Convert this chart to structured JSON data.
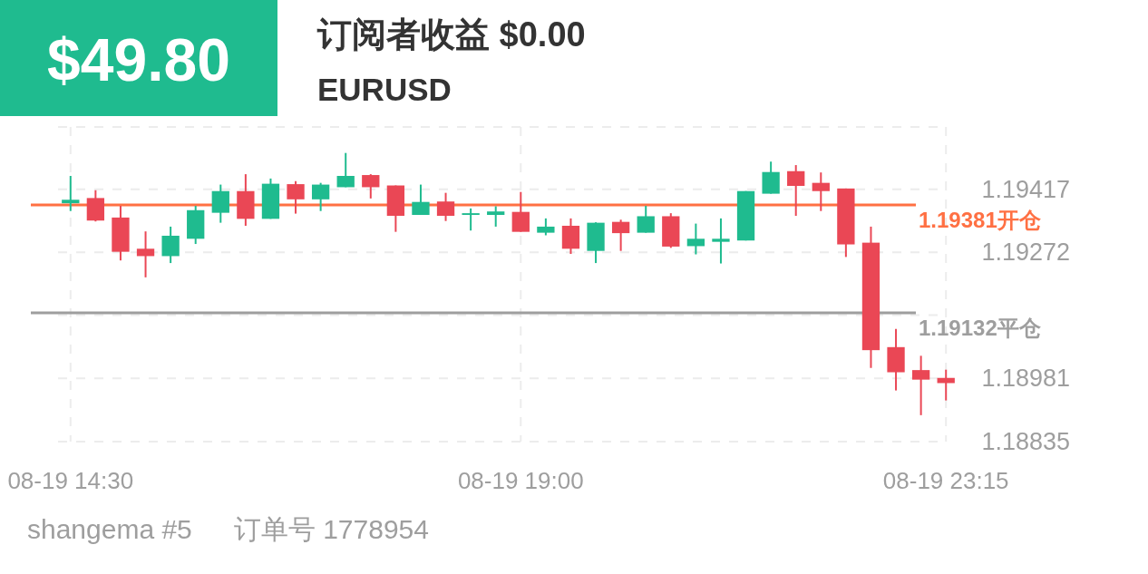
{
  "chart_data": {
    "type": "candlestick",
    "title": "订阅者收益 $0.00",
    "subtitle": "EURUSD",
    "annotations": [
      "$49.80",
      "shangema #5",
      "订单号 1778954"
    ],
    "ohlc": [
      [
        1.19385,
        1.19448,
        1.19367,
        1.19393
      ],
      [
        1.19397,
        1.19415,
        1.19343,
        1.19345
      ],
      [
        1.19352,
        1.19379,
        1.19253,
        1.19273
      ],
      [
        1.1928,
        1.1932,
        1.19214,
        1.19263
      ],
      [
        1.19263,
        1.19331,
        1.19247,
        1.1931
      ],
      [
        1.19303,
        1.19379,
        1.19291,
        1.19369
      ],
      [
        1.19363,
        1.19428,
        1.1934,
        1.19413
      ],
      [
        1.19413,
        1.19452,
        1.19333,
        1.19349
      ],
      [
        1.19349,
        1.19442,
        1.19349,
        1.1943
      ],
      [
        1.19429,
        1.19436,
        1.19361,
        1.19394
      ],
      [
        1.19394,
        1.19432,
        1.19367,
        1.19428
      ],
      [
        1.19422,
        1.19501,
        1.19422,
        1.19448
      ],
      [
        1.1945,
        1.19452,
        1.19396,
        1.19422
      ],
      [
        1.19426,
        1.19426,
        1.19319,
        1.19356
      ],
      [
        1.19358,
        1.19428,
        1.19358,
        1.19388
      ],
      [
        1.19389,
        1.19409,
        1.19344,
        1.19356
      ],
      [
        1.19358,
        1.19373,
        1.19322,
        1.19362
      ],
      [
        1.19358,
        1.19378,
        1.19331,
        1.19366
      ],
      [
        1.19365,
        1.19411,
        1.19319,
        1.19319
      ],
      [
        1.19317,
        1.1935,
        1.19311,
        1.19331
      ],
      [
        1.19333,
        1.1935,
        1.19268,
        1.1928
      ],
      [
        1.19275,
        1.19341,
        1.19247,
        1.1934
      ],
      [
        1.19342,
        1.19347,
        1.19275,
        1.19316
      ],
      [
        1.19317,
        1.19379,
        1.19317,
        1.19355
      ],
      [
        1.19355,
        1.19362,
        1.19282,
        1.19285
      ],
      [
        1.19286,
        1.19338,
        1.19267,
        1.19303
      ],
      [
        1.19296,
        1.1935,
        1.19246,
        1.19303
      ],
      [
        1.19299,
        1.19413,
        1.19299,
        1.19413
      ],
      [
        1.19407,
        1.19481,
        1.19407,
        1.19457
      ],
      [
        1.19459,
        1.19473,
        1.19356,
        1.19425
      ],
      [
        1.19432,
        1.19456,
        1.19367,
        1.19413
      ],
      [
        1.19419,
        1.19419,
        1.19261,
        1.1929
      ],
      [
        1.19294,
        1.19331,
        1.19005,
        1.19046
      ],
      [
        1.19053,
        1.19095,
        1.18953,
        1.18995
      ],
      [
        1.19,
        1.19033,
        1.18896,
        1.18978
      ],
      [
        1.18982,
        1.19001,
        1.1893,
        1.1897
      ]
    ],
    "colors": [
      "#1fbb8f",
      "#ea4755",
      "#ea4755",
      "#ea4755",
      "#1fbb8f",
      "#1fbb8f",
      "#1fbb8f",
      "#ea4755",
      "#1fbb8f",
      "#ea4755",
      "#1fbb8f",
      "#1fbb8f",
      "#ea4755",
      "#ea4755",
      "#1fbb8f",
      "#ea4755",
      "#1fbb8f",
      "#1fbb8f",
      "#ea4755",
      "#1fbb8f",
      "#ea4755",
      "#1fbb8f",
      "#ea4755",
      "#1fbb8f",
      "#ea4755",
      "#1fbb8f",
      "#1fbb8f",
      "#1fbb8f",
      "#1fbb8f",
      "#ea4755",
      "#ea4755",
      "#ea4755",
      "#ea4755",
      "#ea4755",
      "#ea4755",
      "#ea4755"
    ],
    "categories": [
      "08-19 14:30",
      null,
      null,
      null,
      null,
      null,
      null,
      null,
      null,
      null,
      null,
      null,
      null,
      null,
      null,
      null,
      null,
      null,
      "08-19 19:00",
      null,
      null,
      null,
      null,
      null,
      null,
      null,
      null,
      null,
      null,
      null,
      null,
      null,
      null,
      null,
      null,
      "08-19 23:15"
    ],
    "ylim": [
      1.18835,
      1.19561
    ],
    "yticks": [
      1.19417,
      1.19272,
      {
        "value": 1.19127,
        "label": null
      },
      1.18981,
      1.18835
    ],
    "ref_lines": [
      {
        "axis": "y",
        "value": 1.19381,
        "label": "1.19381开仓",
        "color": "#ff7043"
      },
      {
        "axis": "y",
        "value": 1.19132,
        "label": "1.19132平仓",
        "color": "#9e9e9e"
      }
    ],
    "grid": true
  }
}
